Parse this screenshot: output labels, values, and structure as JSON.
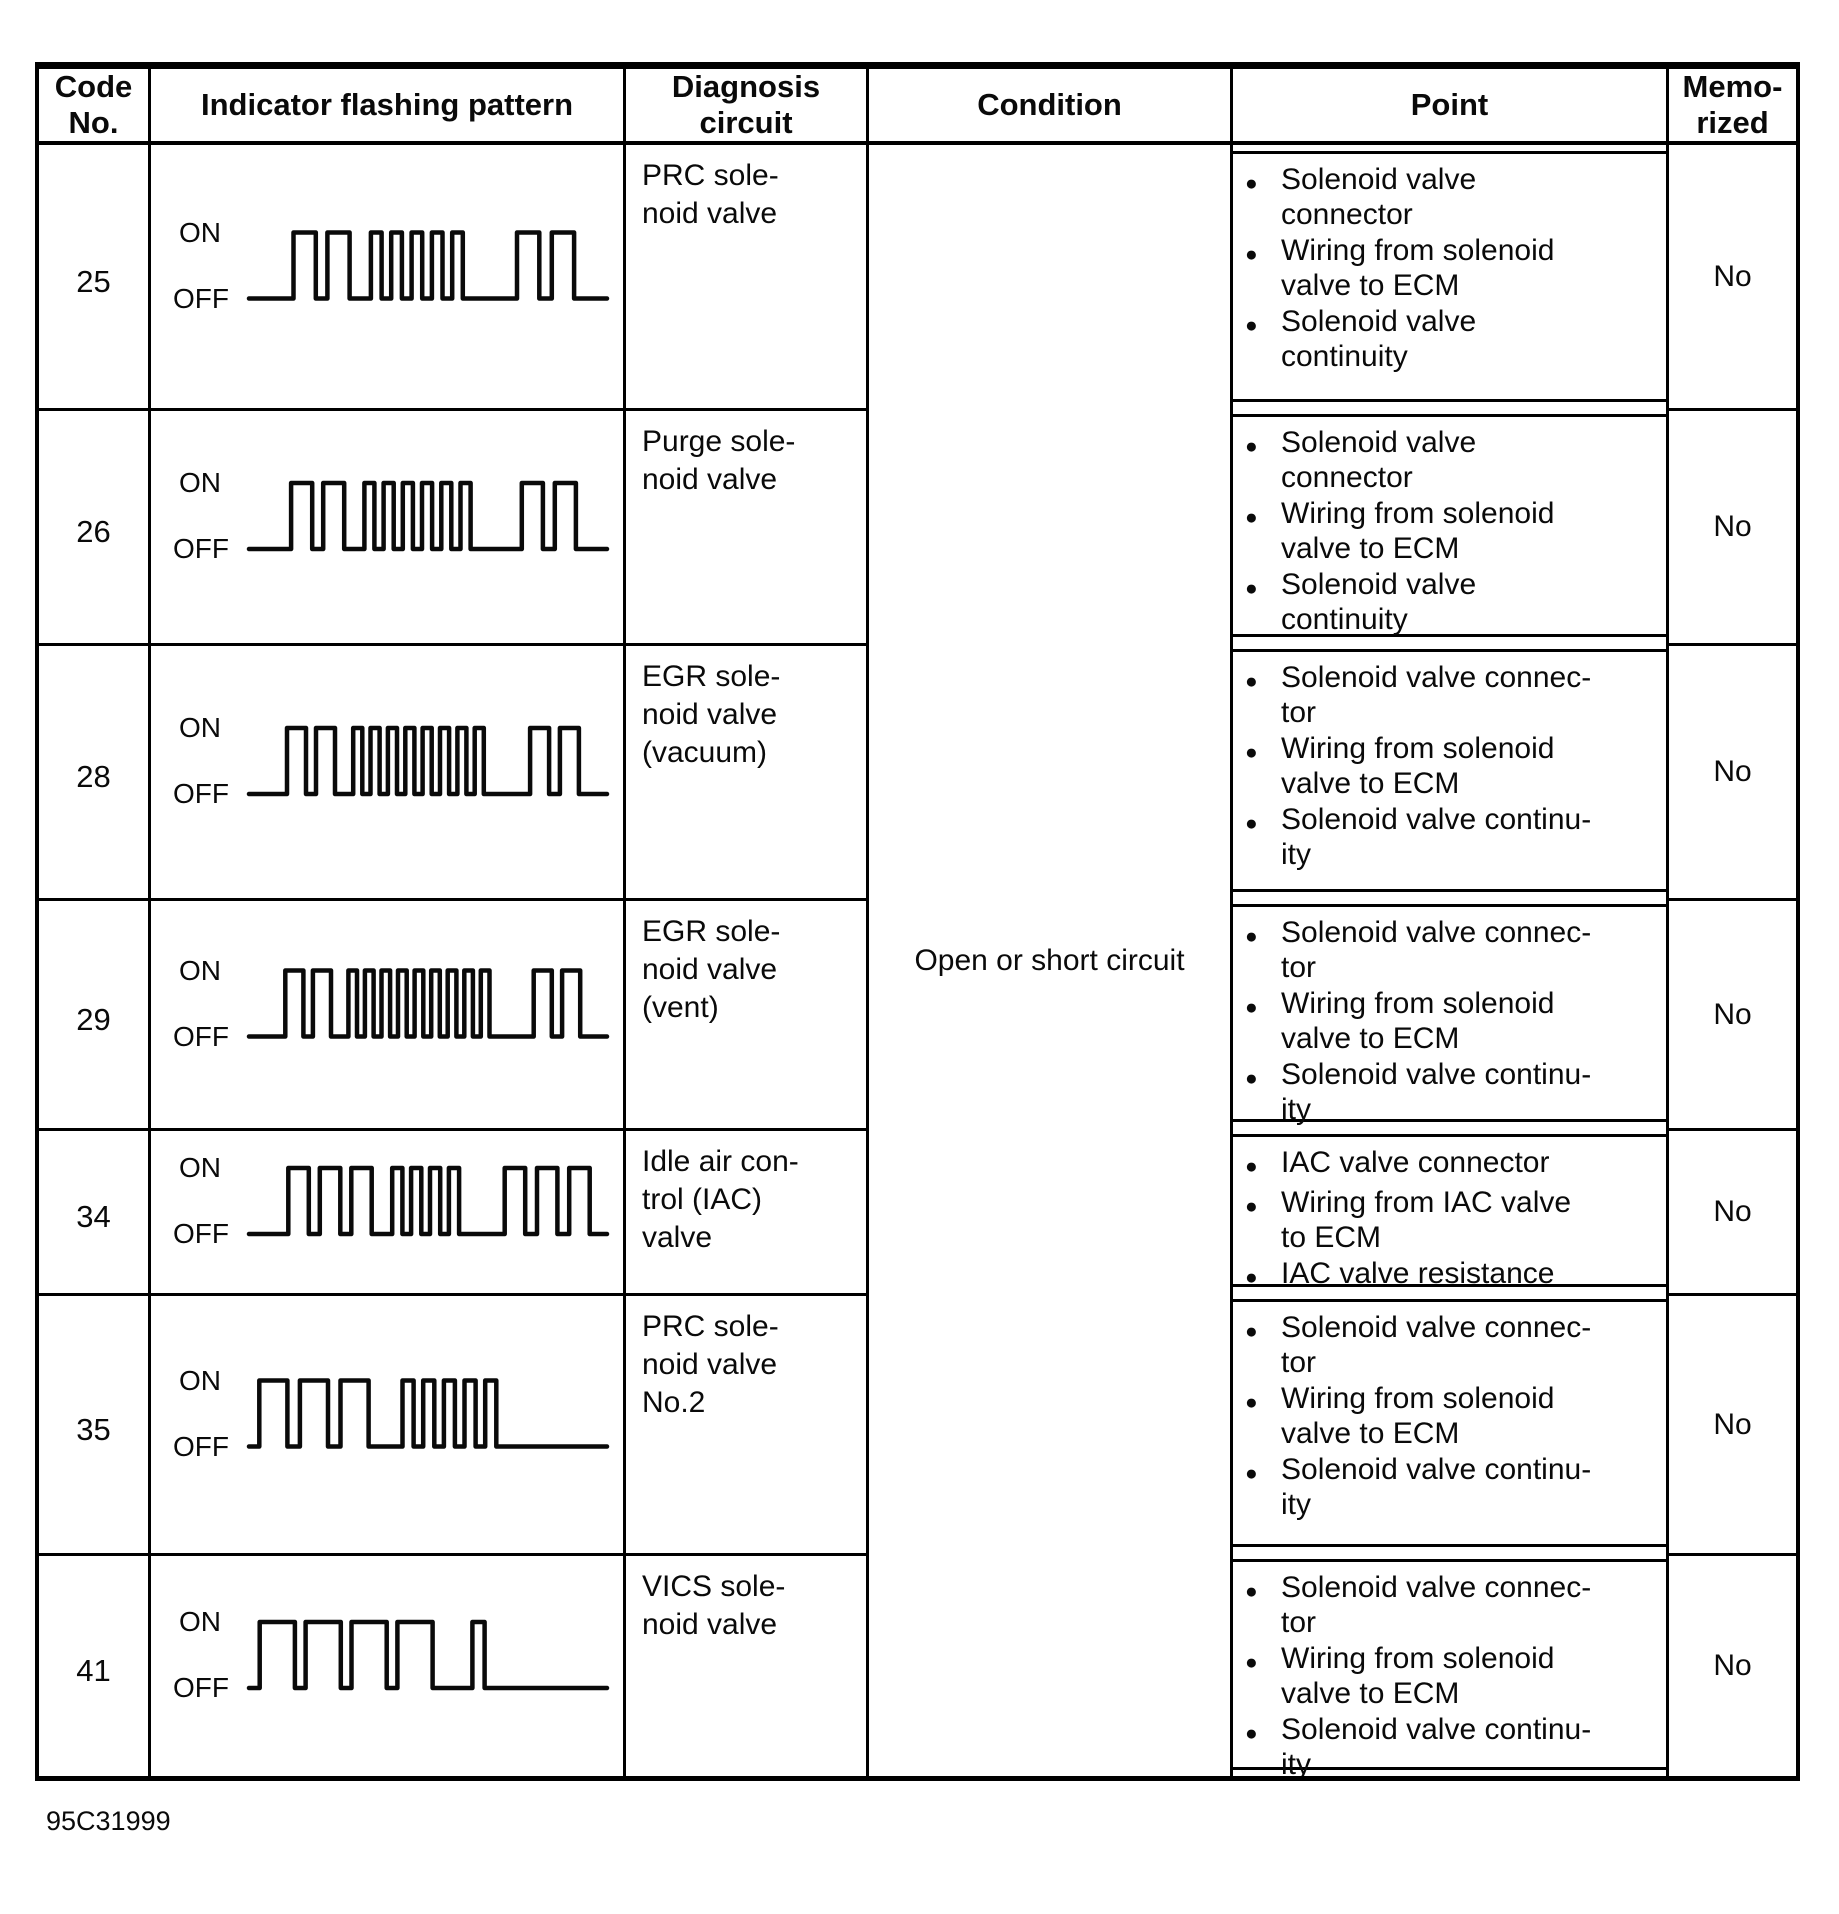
{
  "labels": {
    "on": "ON",
    "off": "OFF"
  },
  "figure_id": "95C31999",
  "table": {
    "headers": {
      "code": "Code\nNo.",
      "pattern": "Indicator flashing pattern",
      "diagnosis": "Diagnosis\ncircuit",
      "condition": "Condition",
      "point": "Point",
      "memorized": "Memo-\nrized"
    },
    "condition": "Open or short circuit",
    "rows": [
      {
        "code": "25",
        "diagnosis": "PRC sole-\nnoid valve",
        "pattern": {
          "long": 2,
          "short": 5,
          "repeat": 2,
          "style": "dense"
        },
        "points": [
          "Solenoid valve\nconnector",
          "Wiring from solenoid\nvalve to ECM",
          "Solenoid valve\ncontinuity"
        ],
        "memorized": "No"
      },
      {
        "code": "26",
        "diagnosis": "Purge sole-\nnoid valve",
        "pattern": {
          "long": 2,
          "short": 6,
          "repeat": 2,
          "style": "dense"
        },
        "points": [
          "Solenoid valve\nconnector",
          "Wiring from solenoid\nvalve to ECM",
          "Solenoid valve\ncontinuity"
        ],
        "memorized": "No"
      },
      {
        "code": "28",
        "diagnosis": "EGR sole-\nnoid valve\n(vacuum)",
        "pattern": {
          "long": 2,
          "short": 8,
          "repeat": 2,
          "style": "dense"
        },
        "points": [
          "Solenoid valve connec-\ntor",
          "Wiring from solenoid\nvalve to ECM",
          "Solenoid valve continu-\nity"
        ],
        "memorized": "No"
      },
      {
        "code": "29",
        "diagnosis": "EGR sole-\nnoid valve\n(vent)",
        "pattern": {
          "long": 2,
          "short": 9,
          "repeat": 2,
          "style": "dense"
        },
        "points": [
          "Solenoid valve connec-\ntor",
          "Wiring from solenoid\nvalve to ECM",
          "Solenoid valve continu-\nity"
        ],
        "memorized": "No"
      },
      {
        "code": "34",
        "diagnosis": "Idle air con-\ntrol (IAC)\nvalve",
        "pattern": {
          "long": 3,
          "short": 4,
          "repeat": 3,
          "style": "triple"
        },
        "points": [
          "IAC valve connector",
          "Wiring from IAC valve\nto ECM",
          "IAC valve resistance"
        ],
        "memorized": "No"
      },
      {
        "code": "35",
        "diagnosis": "PRC sole-\nnoid valve\nNo.2",
        "pattern": {
          "long": 3,
          "short": 5,
          "repeat": 0,
          "style": "wide"
        },
        "points": [
          "Solenoid valve connec-\ntor",
          "Wiring from solenoid\nvalve to ECM",
          "Solenoid valve continu-\nity"
        ],
        "memorized": "No"
      },
      {
        "code": "41",
        "diagnosis": "VICS sole-\nnoid valve",
        "pattern": {
          "long": 4,
          "short": 1,
          "repeat": 0,
          "style": "broad"
        },
        "points": [
          "Solenoid valve connec-\ntor",
          "Wiring from solenoid\nvalve to ECM",
          "Solenoid valve continu-\nity"
        ],
        "memorized": "No"
      }
    ]
  }
}
